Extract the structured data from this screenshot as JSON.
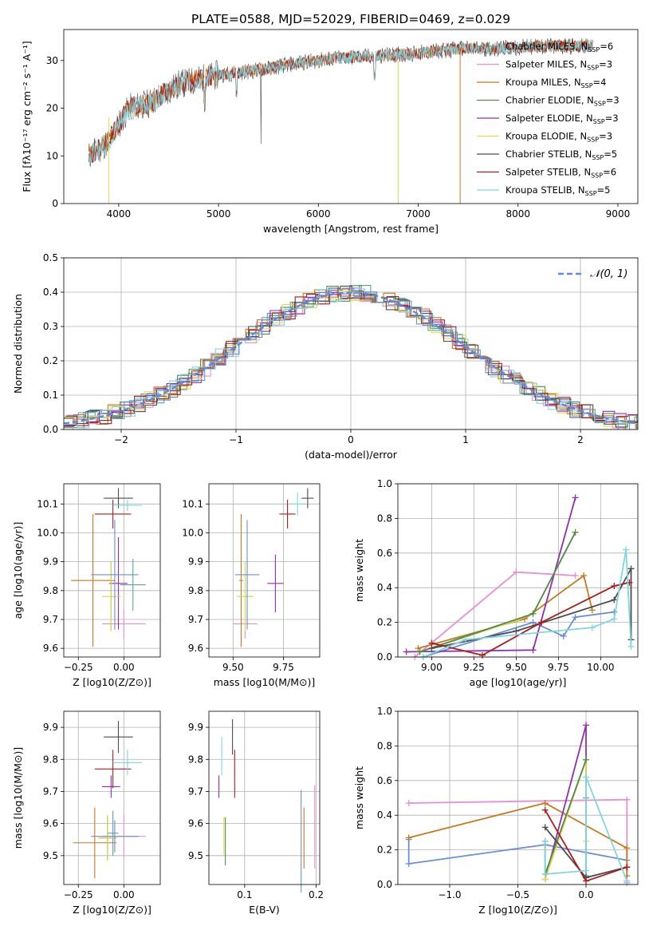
{
  "title": "PLATE=0588, MJD=52029, FIBERID=0469, z=0.029",
  "colors": [
    "#5f9ea0",
    "#e58fd8",
    "#c8781e",
    "#4f8a4f",
    "#8f2fb0",
    "#e5d84f",
    "#4d4d4d",
    "#b01b1b",
    "#7fd6e0"
  ],
  "chart_data": [
    {
      "id": "spectrum",
      "type": "line",
      "xlabel": "wavelength [Angstrom, rest frame]",
      "ylabel": "Flux [fλ10⁻¹⁷ erg cm⁻² s⁻¹ A⁻¹]",
      "xlim": [
        3450,
        9200
      ],
      "ylim": [
        0,
        36.5
      ],
      "xticks": [
        4000,
        5000,
        6000,
        7000,
        8000,
        9000
      ],
      "yticks": [
        0,
        10,
        20,
        30
      ],
      "legend_position": "top-right",
      "series": [
        {
          "name": "Chabrier MILES, N_SSP=6"
        },
        {
          "name": "Salpeter MILES, N_SSP=3"
        },
        {
          "name": "Kroupa MILES, N_SSP=4"
        },
        {
          "name": "Chabrier ELODIE, N_SSP=3"
        },
        {
          "name": "Salpeter ELODIE, N_SSP=3"
        },
        {
          "name": "Kroupa ELODIE, N_SSP=3"
        },
        {
          "name": "Chabrier STELIB, N_SSP=5"
        },
        {
          "name": "Salpeter STELIB, N_SSP=6"
        },
        {
          "name": "Kroupa STELIB, N_SSP=5"
        }
      ],
      "continuum": {
        "x": [
          3700,
          3900,
          4100,
          4300,
          4600,
          5000,
          5400,
          5800,
          6200,
          6600,
          7000,
          7400,
          7800,
          8200,
          8700
        ],
        "y": [
          10,
          13,
          20,
          21,
          25,
          27,
          28,
          29.5,
          30.5,
          31,
          31.5,
          32.5,
          32.5,
          33,
          33
        ]
      }
    },
    {
      "id": "residual",
      "type": "step",
      "xlabel": "(data-model)/error",
      "ylabel": "Normed distribution",
      "xlim": [
        -2.5,
        2.5
      ],
      "ylim": [
        0,
        0.5
      ],
      "xticks": [
        -2,
        -1,
        0,
        1,
        2
      ],
      "yticks": [
        0.0,
        0.1,
        0.2,
        0.3,
        0.4,
        0.5
      ],
      "legend": "𝒩(0, 1)",
      "legend_position": "top-right",
      "grid": true
    },
    {
      "id": "ageZ",
      "type": "errorbar",
      "xlabel": "Z [log10(Z/Z⊙)]",
      "ylabel": "age  [log10(age/yr)]",
      "xlim": [
        -0.33,
        0.2
      ],
      "ylim": [
        9.57,
        10.17
      ],
      "xticks": [
        -0.25,
        0.0
      ],
      "yticks": [
        9.6,
        9.7,
        9.8,
        9.9,
        10.0,
        10.1
      ],
      "grid": true,
      "points": [
        {
          "c": 0,
          "x": 0.05,
          "xe": 0.07,
          "y": 9.82,
          "ye": 0.09
        },
        {
          "c": 1,
          "x": 0.0,
          "xe": 0.12,
          "y": 9.685,
          "ye": 0.05
        },
        {
          "c": 2,
          "x": -0.17,
          "xe": 0.12,
          "y": 9.835,
          "ye": 0.23
        },
        {
          "c": 3,
          "x": -0.07,
          "xe": 0.05,
          "y": 9.78,
          "ye": 0.12
        },
        {
          "c": 4,
          "x": -0.03,
          "xe": 0.05,
          "y": 9.825,
          "ye": 0.16
        },
        {
          "c": 5,
          "x": -0.07,
          "xe": 0.05,
          "y": 9.78,
          "ye": 0.12
        },
        {
          "c": 6,
          "x": -0.03,
          "xe": 0.08,
          "y": 10.12,
          "ye": 0.035
        },
        {
          "c": 7,
          "x": -0.06,
          "xe": 0.1,
          "y": 10.065,
          "ye": 0.05
        },
        {
          "c": 8,
          "x": 0.02,
          "xe": 0.08,
          "y": 10.095,
          "ye": 0.02
        },
        {
          "c": 9,
          "x": -0.05,
          "xe": 0.13,
          "y": 9.855,
          "ye": 0.19
        }
      ]
    },
    {
      "id": "ageM",
      "type": "errorbar",
      "xlabel": "mass [log10(M/M⊙)]",
      "ylabel": "",
      "xlim": [
        9.38,
        9.93
      ],
      "ylim": [
        9.57,
        10.17
      ],
      "xticks": [
        9.5,
        9.75
      ],
      "yticks": [
        9.6,
        9.7,
        9.8,
        9.9,
        10.0,
        10.1
      ],
      "grid": true,
      "points": [
        {
          "c": 1,
          "x": 9.56,
          "xe": 0.06,
          "y": 9.685,
          "ye": 0.05
        },
        {
          "c": 2,
          "x": 9.54,
          "xe": 0.01,
          "y": 9.835,
          "ye": 0.23
        },
        {
          "c": 3,
          "x": 9.56,
          "xe": 0.04,
          "y": 9.78,
          "ye": 0.12
        },
        {
          "c": 4,
          "x": 9.71,
          "xe": 0.04,
          "y": 9.825,
          "ye": 0.1
        },
        {
          "c": 5,
          "x": 9.56,
          "xe": 0.04,
          "y": 9.78,
          "ye": 0.12
        },
        {
          "c": 6,
          "x": 9.87,
          "xe": 0.03,
          "y": 10.12,
          "ye": 0.035
        },
        {
          "c": 7,
          "x": 9.77,
          "xe": 0.04,
          "y": 10.065,
          "ye": 0.05
        },
        {
          "c": 8,
          "x": 9.82,
          "xe": 0.04,
          "y": 10.1,
          "ye": 0.04
        },
        {
          "c": 9,
          "x": 9.57,
          "xe": 0.06,
          "y": 9.855,
          "ye": 0.19
        }
      ]
    },
    {
      "id": "weightAge",
      "type": "line",
      "xlabel": "age  [log10(age/yr)]",
      "ylabel": "mass weight",
      "xlim": [
        8.8,
        10.22
      ],
      "ylim": [
        0,
        1.0
      ],
      "xticks": [
        9.0,
        9.25,
        9.5,
        9.75,
        10.0
      ],
      "yticks": [
        0.0,
        0.2,
        0.4,
        0.6,
        0.8,
        1.0
      ],
      "grid": true,
      "series": [
        {
          "c": 9,
          "x": [
            8.95,
            9.6,
            9.78,
            9.85,
            10.08
          ],
          "y": [
            0.0,
            0.2,
            0.12,
            0.23,
            0.26
          ]
        },
        {
          "c": 1,
          "x": [
            8.9,
            9.5,
            9.85
          ],
          "y": [
            0.0,
            0.49,
            0.47
          ]
        },
        {
          "c": 2,
          "x": [
            8.92,
            9.55,
            9.9,
            9.95
          ],
          "y": [
            0.05,
            0.22,
            0.47,
            0.27
          ]
        },
        {
          "c": 4,
          "x": [
            8.85,
            9.6,
            9.85
          ],
          "y": [
            0.03,
            0.04,
            0.92
          ]
        },
        {
          "c": 5,
          "x": [
            8.93,
            9.5,
            9.6,
            9.85
          ],
          "y": [
            0.03,
            0.21,
            0.25,
            0.72
          ]
        },
        {
          "c": 3,
          "x": [
            8.93,
            9.6,
            9.85
          ],
          "y": [
            0.03,
            0.25,
            0.72
          ]
        },
        {
          "c": 6,
          "x": [
            9.0,
            9.5,
            10.08,
            10.18,
            10.18
          ],
          "y": [
            0.05,
            0.15,
            0.33,
            0.51,
            0.1
          ]
        },
        {
          "c": 7,
          "x": [
            9.0,
            9.3,
            9.65,
            10.08,
            10.17
          ],
          "y": [
            0.08,
            0.01,
            0.2,
            0.41,
            0.43
          ]
        },
        {
          "c": 8,
          "x": [
            8.95,
            9.2,
            9.95,
            10.08,
            10.15,
            10.18
          ],
          "y": [
            0.0,
            0.1,
            0.17,
            0.22,
            0.62,
            0.06
          ]
        }
      ]
    },
    {
      "id": "massZ",
      "type": "errorbar",
      "xlabel": "Z [log10(Z/Z⊙)]",
      "ylabel": "mass [log10(M/M⊙)]",
      "xlim": [
        -0.33,
        0.2
      ],
      "ylim": [
        9.41,
        9.95
      ],
      "xticks": [
        -0.25,
        0.0
      ],
      "yticks": [
        9.5,
        9.6,
        9.7,
        9.8,
        9.9
      ],
      "grid": true,
      "points": [
        {
          "c": 0,
          "x": -0.06,
          "xe": 0.03,
          "y": 9.57,
          "ye": 0.07
        },
        {
          "c": 1,
          "x": 0.0,
          "xe": 0.12,
          "y": 9.56,
          "ye": 0.07
        },
        {
          "c": 2,
          "x": -0.16,
          "xe": 0.12,
          "y": 9.54,
          "ye": 0.11
        },
        {
          "c": 3,
          "x": -0.09,
          "xe": 0.05,
          "y": 9.555,
          "ye": 0.07
        },
        {
          "c": 4,
          "x": -0.07,
          "xe": 0.05,
          "y": 9.715,
          "ye": 0.035
        },
        {
          "c": 5,
          "x": -0.09,
          "xe": 0.05,
          "y": 9.555,
          "ye": 0.07
        },
        {
          "c": 6,
          "x": -0.03,
          "xe": 0.08,
          "y": 9.87,
          "ye": 0.05
        },
        {
          "c": 7,
          "x": -0.06,
          "xe": 0.1,
          "y": 9.77,
          "ye": 0.06
        },
        {
          "c": 8,
          "x": 0.02,
          "xe": 0.08,
          "y": 9.79,
          "ye": 0.04
        },
        {
          "c": 9,
          "x": -0.05,
          "xe": 0.13,
          "y": 9.56,
          "ye": 0.05
        }
      ]
    },
    {
      "id": "massEBV",
      "type": "errorbar",
      "xlabel": "E(B-V)",
      "ylabel": "",
      "xlim": [
        0.05,
        0.205
      ],
      "ylim": [
        9.41,
        9.95
      ],
      "xticks": [
        0.1,
        0.2
      ],
      "yticks": [
        9.5,
        9.6,
        9.7,
        9.8,
        9.9
      ],
      "grid": true,
      "points": [
        {
          "c": 1,
          "x": 0.198,
          "xe": 0,
          "y": 9.59,
          "ye": 0.13
        },
        {
          "c": 2,
          "x": 0.183,
          "xe": 0,
          "y": 9.555,
          "ye": 0.095
        },
        {
          "c": 4,
          "x": 0.064,
          "xe": 0,
          "y": 9.715,
          "ye": 0.035
        },
        {
          "c": 5,
          "x": 0.071,
          "xe": 0,
          "y": 9.56,
          "ye": 0.06
        },
        {
          "c": 3,
          "x": 0.073,
          "xe": 0,
          "y": 9.545,
          "ye": 0.075
        },
        {
          "c": 6,
          "x": 0.083,
          "xe": 0,
          "y": 9.87,
          "ye": 0.055
        },
        {
          "c": 7,
          "x": 0.086,
          "xe": 0,
          "y": 9.755,
          "ye": 0.075
        },
        {
          "c": 8,
          "x": 0.068,
          "xe": 0,
          "y": 9.81,
          "ye": 0.06
        },
        {
          "c": 9,
          "x": 0.179,
          "xe": 0,
          "y": 9.545,
          "ye": 0.16
        }
      ]
    },
    {
      "id": "weightZ",
      "type": "line",
      "xlabel": "Z [log10(Z/Z⊙)]",
      "ylabel": "mass weight",
      "xlim": [
        -1.38,
        0.38
      ],
      "ylim": [
        0,
        1.0
      ],
      "xticks": [
        -1.0,
        -0.5,
        0.0
      ],
      "yticks": [
        0.0,
        0.2,
        0.4,
        0.6,
        0.8,
        1.0
      ],
      "grid": true,
      "series": [
        {
          "c": 9,
          "x": [
            -1.3,
            -1.3,
            -0.3,
            0.3
          ],
          "y": [
            0.26,
            0.12,
            0.23,
            0.14
          ]
        },
        {
          "c": 1,
          "x": [
            -1.3,
            0.3,
            0.3
          ],
          "y": [
            0.47,
            0.49,
            0.01
          ]
        },
        {
          "c": 2,
          "x": [
            -1.3,
            -0.3,
            0.3,
            0.3
          ],
          "y": [
            0.27,
            0.47,
            0.21,
            0.05
          ]
        },
        {
          "c": 4,
          "x": [
            -0.3,
            0.0,
            0.0
          ],
          "y": [
            0.03,
            0.92,
            0.04
          ]
        },
        {
          "c": 5,
          "x": [
            -0.3,
            0.0,
            0.0
          ],
          "y": [
            0.03,
            0.72,
            0.25
          ]
        },
        {
          "c": 3,
          "x": [
            -0.3,
            -0.3,
            0.0
          ],
          "y": [
            0.25,
            0.06,
            0.72
          ]
        },
        {
          "c": 0,
          "x": [
            0.0,
            0.0
          ],
          "y": [
            0.5,
            0.05
          ]
        },
        {
          "c": 6,
          "x": [
            -0.3,
            0.0,
            0.3
          ],
          "y": [
            0.33,
            0.04,
            0.1
          ]
        },
        {
          "c": 7,
          "x": [
            -0.3,
            0.0,
            0.3
          ],
          "y": [
            0.43,
            0.02,
            0.1
          ]
        },
        {
          "c": 8,
          "x": [
            -0.3,
            -0.3,
            0.0,
            0.0,
            0.3
          ],
          "y": [
            0.25,
            0.06,
            0.08,
            0.62,
            0.02
          ]
        }
      ]
    }
  ]
}
